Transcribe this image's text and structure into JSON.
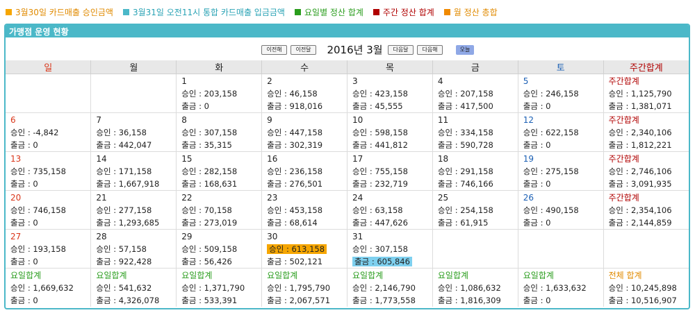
{
  "legend": [
    {
      "label": "3월30일 카드매출 승인금액",
      "color": "#f6a600"
    },
    {
      "label": "3월31일 오전11시 통합 카드매출 입금금액",
      "color": "#4bb8c8"
    },
    {
      "label": "요일별 정산 합계",
      "color": "#2a9d1d"
    },
    {
      "label": "주간 정산 합계",
      "color": "#b00000"
    },
    {
      "label": "월 정산 총합",
      "color": "#f08a00"
    }
  ],
  "panel": {
    "title": "가맹점 운영 현황"
  },
  "nav": {
    "prev_year": "이전해",
    "prev_month": "이전달",
    "title": "2016년 3월",
    "next_month": "다음달",
    "next_year": "다음해",
    "today": "오늘"
  },
  "headers": [
    "일",
    "월",
    "화",
    "수",
    "목",
    "금",
    "토",
    "주간합계"
  ],
  "labels": {
    "approve": "승인 : ",
    "withdraw": "출금 : "
  },
  "weeks": [
    {
      "days": [
        null,
        null,
        {
          "day": "1",
          "approve": "203,158",
          "withdraw": "0"
        },
        {
          "day": "2",
          "approve": "46,158",
          "withdraw": "918,016"
        },
        {
          "day": "3",
          "approve": "423,158",
          "withdraw": "45,555"
        },
        {
          "day": "4",
          "approve": "207,158",
          "withdraw": "417,500"
        },
        {
          "day": "5",
          "approve": "246,158",
          "withdraw": "0"
        }
      ],
      "total": {
        "label": "주간합계",
        "approve": "1,125,790",
        "withdraw": "1,381,071"
      }
    },
    {
      "days": [
        {
          "day": "6",
          "approve": "-4,842",
          "withdraw": "0"
        },
        {
          "day": "7",
          "approve": "36,158",
          "withdraw": "442,047"
        },
        {
          "day": "8",
          "approve": "307,158",
          "withdraw": "35,315"
        },
        {
          "day": "9",
          "approve": "447,158",
          "withdraw": "302,319"
        },
        {
          "day": "10",
          "approve": "598,158",
          "withdraw": "441,812"
        },
        {
          "day": "11",
          "approve": "334,158",
          "withdraw": "590,728"
        },
        {
          "day": "12",
          "approve": "622,158",
          "withdraw": "0"
        }
      ],
      "total": {
        "label": "주간합계",
        "approve": "2,340,106",
        "withdraw": "1,812,221"
      }
    },
    {
      "days": [
        {
          "day": "13",
          "approve": "735,158",
          "withdraw": "0"
        },
        {
          "day": "14",
          "approve": "171,158",
          "withdraw": "1,667,918"
        },
        {
          "day": "15",
          "approve": "282,158",
          "withdraw": "168,631"
        },
        {
          "day": "16",
          "approve": "236,158",
          "withdraw": "276,501"
        },
        {
          "day": "17",
          "approve": "755,158",
          "withdraw": "232,719"
        },
        {
          "day": "18",
          "approve": "291,158",
          "withdraw": "746,166"
        },
        {
          "day": "19",
          "approve": "275,158",
          "withdraw": "0"
        }
      ],
      "total": {
        "label": "주간합계",
        "approve": "2,746,106",
        "withdraw": "3,091,935"
      }
    },
    {
      "days": [
        {
          "day": "20",
          "approve": "746,158",
          "withdraw": "0"
        },
        {
          "day": "21",
          "approve": "277,158",
          "withdraw": "1,293,685"
        },
        {
          "day": "22",
          "approve": "70,158",
          "withdraw": "273,019"
        },
        {
          "day": "23",
          "approve": "453,158",
          "withdraw": "68,614"
        },
        {
          "day": "24",
          "approve": "63,158",
          "withdraw": "447,626"
        },
        {
          "day": "25",
          "approve": "254,158",
          "withdraw": "61,915"
        },
        {
          "day": "26",
          "approve": "490,158",
          "withdraw": "0"
        }
      ],
      "total": {
        "label": "주간합계",
        "approve": "2,354,106",
        "withdraw": "2,144,859"
      }
    },
    {
      "days": [
        {
          "day": "27",
          "approve": "193,158",
          "withdraw": "0"
        },
        {
          "day": "28",
          "approve": "57,158",
          "withdraw": "922,428"
        },
        {
          "day": "29",
          "approve": "509,158",
          "withdraw": "56,426"
        },
        {
          "day": "30",
          "approve": "613,158",
          "withdraw": "502,121",
          "highlight_approve": true
        },
        {
          "day": "31",
          "approve": "307,158",
          "withdraw": "605,846",
          "highlight_withdraw": true
        },
        null,
        null
      ],
      "total": null
    }
  ],
  "day_totals": {
    "label": "요일합계",
    "items": [
      {
        "approve": "1,669,632",
        "withdraw": "0"
      },
      {
        "approve": "541,632",
        "withdraw": "4,326,078"
      },
      {
        "approve": "1,371,790",
        "withdraw": "533,391"
      },
      {
        "approve": "1,795,790",
        "withdraw": "2,067,571"
      },
      {
        "approve": "2,146,790",
        "withdraw": "1,773,558"
      },
      {
        "approve": "1,086,632",
        "withdraw": "1,816,309"
      },
      {
        "approve": "1,633,632",
        "withdraw": "0"
      }
    ],
    "grand_label": "전체 합계",
    "grand": {
      "approve": "10,245,898",
      "withdraw": "10,516,907"
    }
  }
}
